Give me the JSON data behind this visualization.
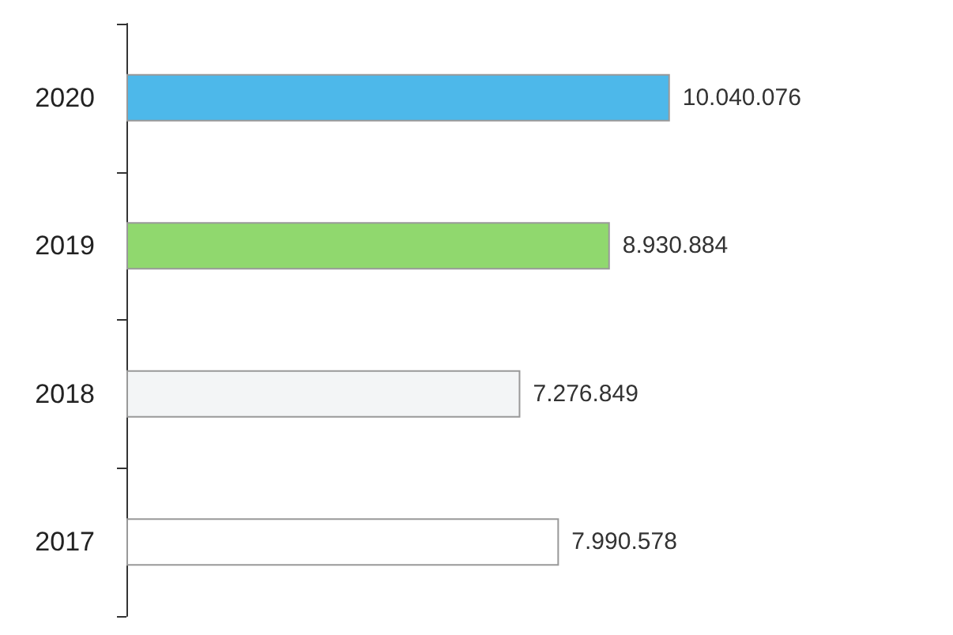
{
  "chart_data": {
    "type": "bar",
    "orientation": "horizontal",
    "categories": [
      "2020",
      "2019",
      "2018",
      "2017"
    ],
    "values": [
      10040076,
      8930884,
      7276849,
      7990578
    ],
    "value_labels": [
      "10.040.076",
      "8.930.884",
      "7.276.849",
      "7.990.578"
    ],
    "colors": [
      "#4db8ea",
      "#90d86e",
      "#f3f5f6",
      "#ffffff"
    ]
  }
}
